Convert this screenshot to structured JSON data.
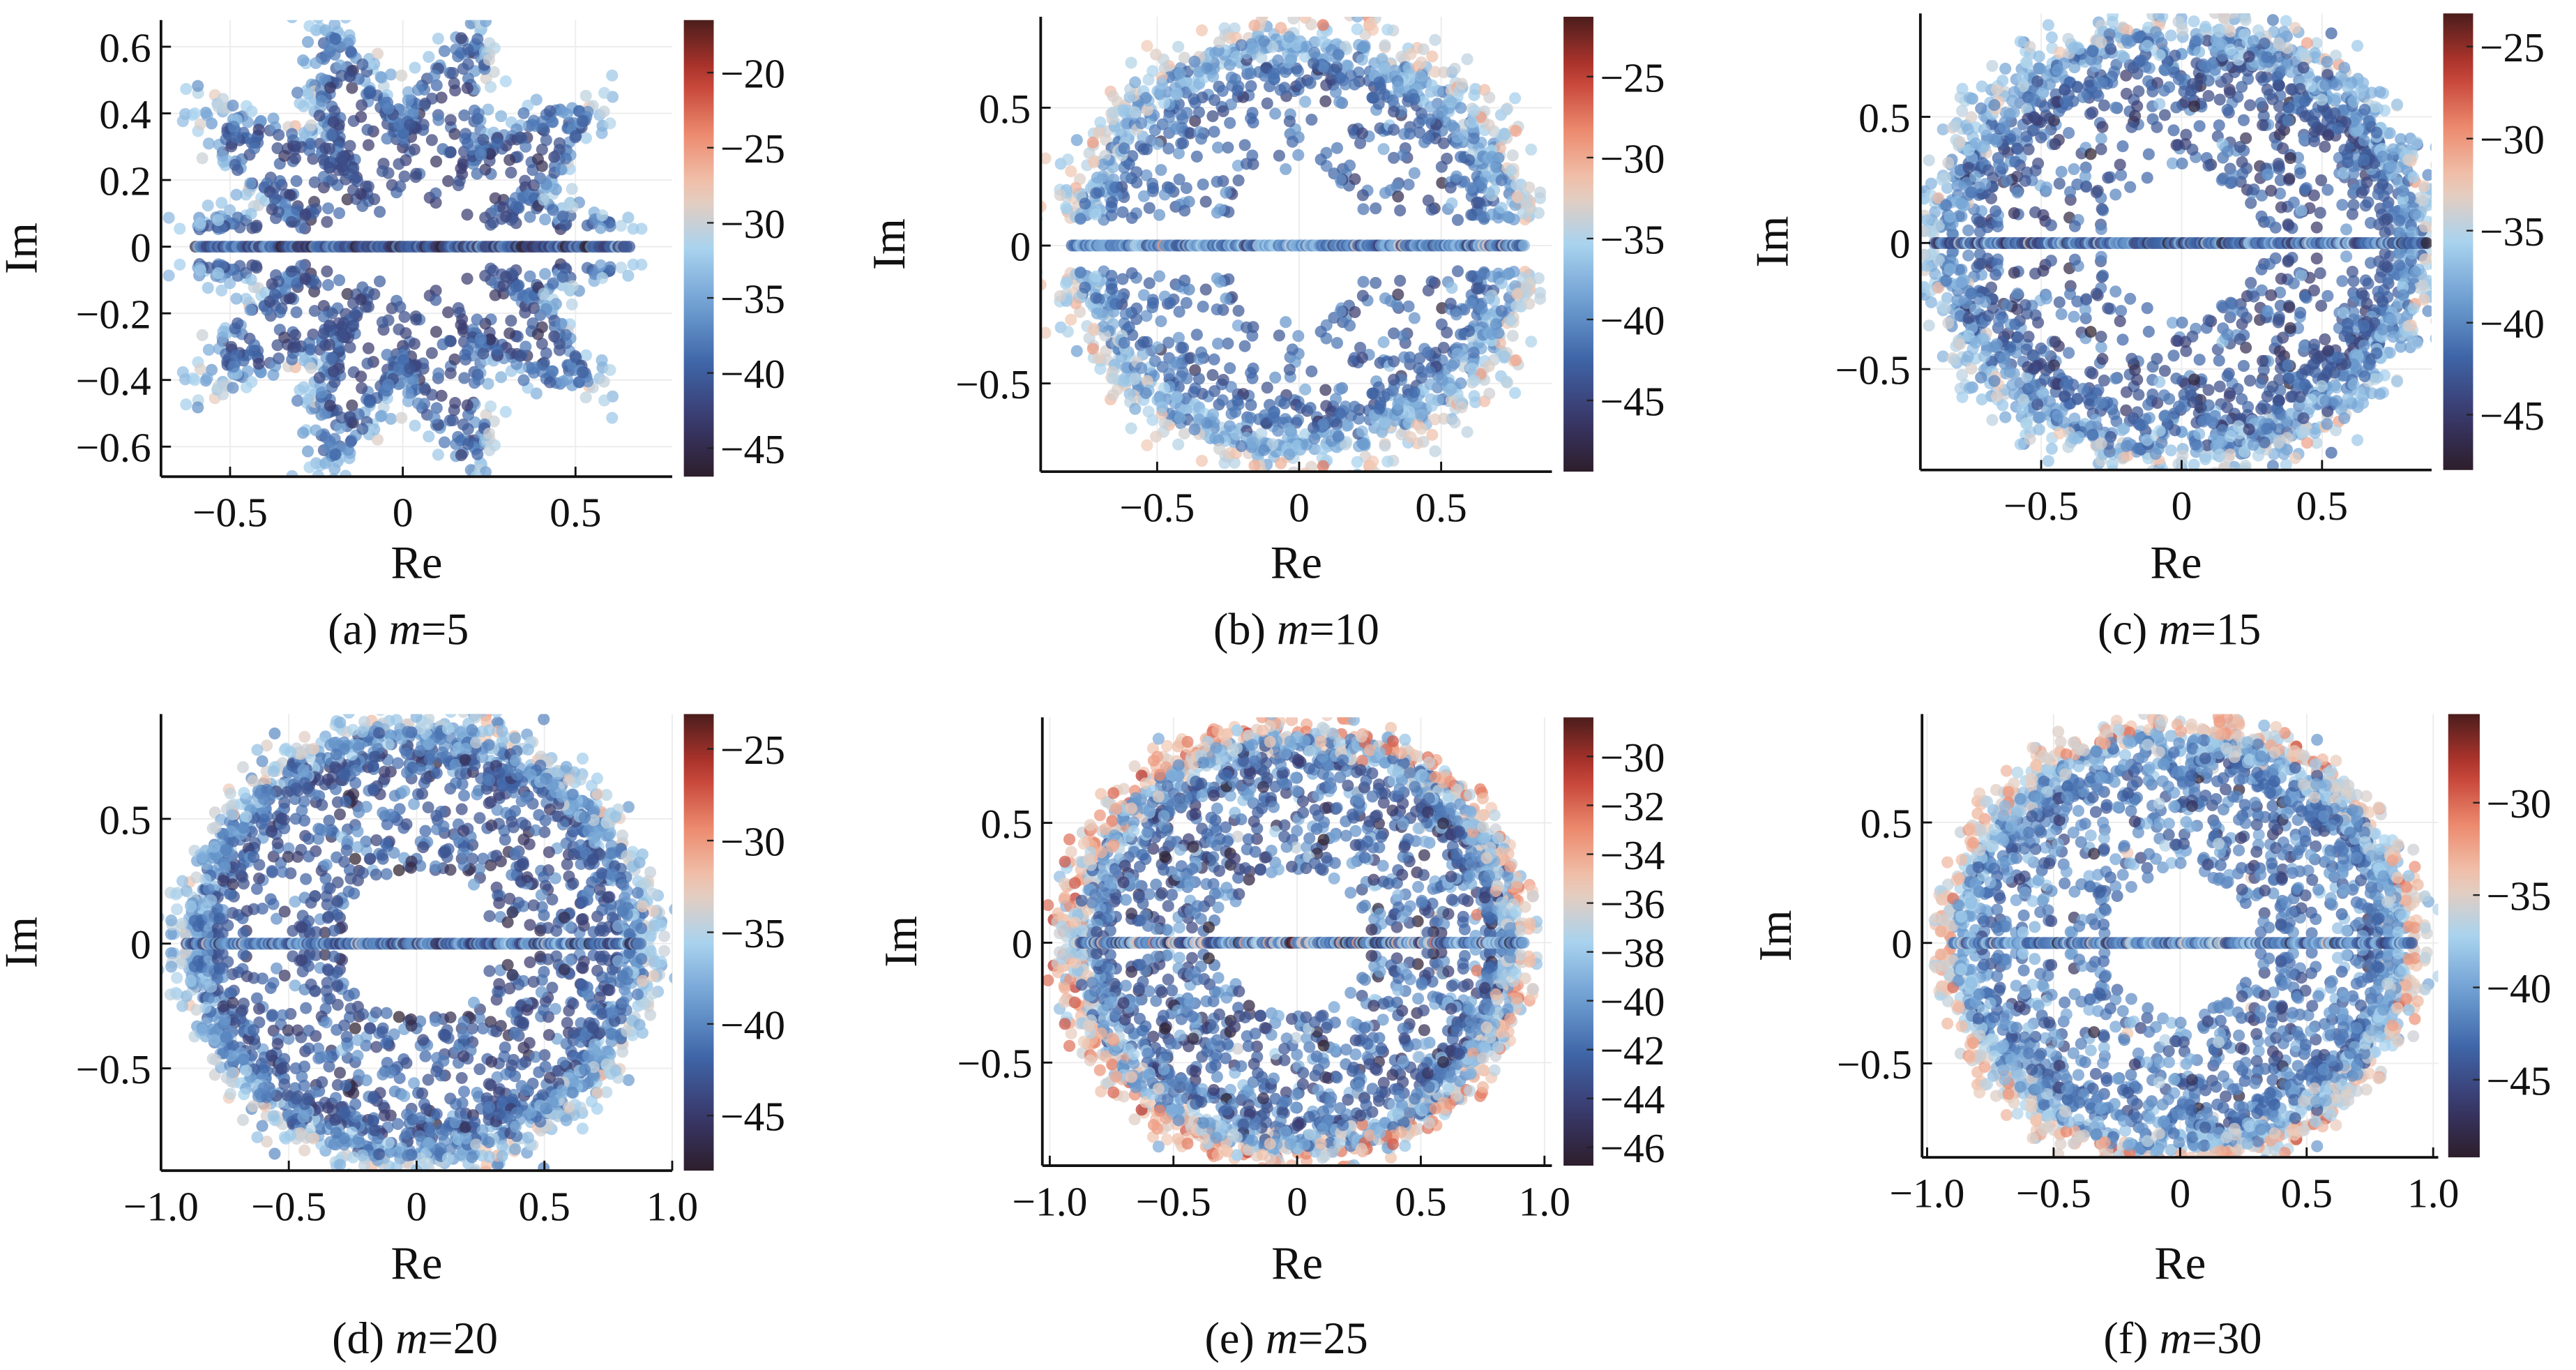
{
  "chart_data": [
    {
      "type": "scatter",
      "caption_prefix": "(a) ",
      "caption_var": "m",
      "caption_eq": "=5",
      "xlabel": "Re",
      "ylabel": "Im",
      "xlim": [
        -0.7,
        0.78
      ],
      "ylim": [
        -0.69,
        0.68
      ],
      "xticks": [
        -0.5,
        0,
        0.5
      ],
      "xticklabels": [
        "−0.5",
        "0",
        "0.5"
      ],
      "yticks": [
        0.6,
        0.4,
        0.2,
        0,
        -0.2,
        -0.4,
        -0.6
      ],
      "yticklabels": [
        "0.6",
        "0.4",
        "0.2",
        "0",
        "−0.2",
        "−0.4",
        "−0.6"
      ],
      "colorbar": {
        "range": [
          -46.9,
          -16.5
        ],
        "ticks": [
          -20,
          -25,
          -30,
          -35,
          -40,
          -45
        ],
        "ticklabels": [
          "−20",
          "−25",
          "−30",
          "−35",
          "−40",
          "−45"
        ]
      },
      "cloud": {
        "shape": "lobed",
        "radius": 0.5,
        "lobe_amp": 0.13,
        "lobes": 10,
        "width": 0.07,
        "n_ring": 1300,
        "n_inner": 160,
        "real_axis": [
          -0.6,
          0.66
        ],
        "axis_gap": 0.05,
        "values": {
          "inner": -41,
          "ring": -38.5,
          "edge": -33
        }
      }
    },
    {
      "type": "scatter",
      "caption_prefix": "(b) ",
      "caption_var": "m",
      "caption_eq": "=10",
      "xlabel": "Re",
      "ylabel": "Im",
      "xlim": [
        -0.91,
        0.89
      ],
      "ylim": [
        -0.82,
        0.83
      ],
      "xticks": [
        -0.5,
        0,
        0.5
      ],
      "xticklabels": [
        "−0.5",
        "0",
        "0.5"
      ],
      "yticks": [
        0.5,
        0,
        -0.5
      ],
      "yticklabels": [
        "0.5",
        "0",
        "−0.5"
      ],
      "colorbar": {
        "range": [
          -49.4,
          -21.3
        ],
        "ticks": [
          -25,
          -30,
          -35,
          -40,
          -45
        ],
        "ticklabels": [
          "−25",
          "−30",
          "−35",
          "−40",
          "−45"
        ]
      },
      "cloud": {
        "shape": "ring",
        "radius": 0.72,
        "lobe_amp": 0,
        "lobes": 0,
        "width": 0.07,
        "n_ring": 1500,
        "n_inner": 220,
        "real_axis": [
          -0.8,
          0.8
        ],
        "axis_gap": 0.09,
        "values": {
          "inner": -42,
          "ring": -38,
          "edge": -34
        }
      }
    },
    {
      "type": "scatter",
      "caption_prefix": "(c) ",
      "caption_var": "m",
      "caption_eq": "=15",
      "xlabel": "Re",
      "ylabel": "Im",
      "xlim": [
        -0.93,
        0.89
      ],
      "ylim": [
        -0.9,
        0.91
      ],
      "xticks": [
        -0.5,
        0,
        0.5
      ],
      "xticklabels": [
        "−0.5",
        "0",
        "0.5"
      ],
      "yticks": [
        0.5,
        0,
        -0.5
      ],
      "yticklabels": [
        "0.5",
        "0",
        "−0.5"
      ],
      "colorbar": {
        "range": [
          -48,
          -23.2
        ],
        "ticks": [
          -25,
          -30,
          -35,
          -40,
          -45
        ],
        "ticklabels": [
          "−25",
          "−30",
          "−35",
          "−40",
          "−45"
        ]
      },
      "cloud": {
        "shape": "ring",
        "radius": 0.8,
        "lobe_amp": 0,
        "lobes": 0,
        "width": 0.07,
        "n_ring": 1700,
        "n_inner": 330,
        "real_axis": [
          -0.88,
          0.88
        ],
        "axis_gap": 0.03,
        "values": {
          "inner": -42,
          "ring": -39,
          "edge": -36
        }
      }
    },
    {
      "type": "scatter",
      "caption_prefix": "(d) ",
      "caption_var": "m",
      "caption_eq": "=20",
      "xlabel": "Re",
      "ylabel": "Im",
      "xlim": [
        -1.0,
        1.0
      ],
      "ylim": [
        -0.91,
        0.92
      ],
      "xticks": [
        -1.0,
        -0.5,
        0,
        0.5,
        1.0
      ],
      "xticklabels": [
        "−1.0",
        "−0.5",
        "0",
        "0.5",
        "1.0"
      ],
      "yticks": [
        0.5,
        0,
        -0.5
      ],
      "yticklabels": [
        "0.5",
        "0",
        "−0.5"
      ],
      "colorbar": {
        "range": [
          -48,
          -23.1
        ],
        "ticks": [
          -25,
          -30,
          -35,
          -40,
          -45
        ],
        "ticklabels": [
          "−25",
          "−30",
          "−35",
          "−40",
          "−45"
        ]
      },
      "cloud": {
        "shape": "ring",
        "radius": 0.83,
        "lobe_amp": 0,
        "lobes": 0,
        "width": 0.06,
        "n_ring": 1700,
        "n_inner": 420,
        "real_axis": [
          -0.9,
          0.88
        ],
        "axis_gap": 0.02,
        "values": {
          "inner": -42.5,
          "ring": -39,
          "edge": -35.5
        }
      }
    },
    {
      "type": "scatter",
      "caption_prefix": "(e) ",
      "caption_var": "m",
      "caption_eq": "=25",
      "xlabel": "Re",
      "ylabel": "Im",
      "xlim": [
        -1.03,
        1.03
      ],
      "ylim": [
        -0.93,
        0.94
      ],
      "xticks": [
        -1.0,
        -0.5,
        0,
        0.5,
        1.0
      ],
      "xticklabels": [
        "−1.0",
        "−0.5",
        "0",
        "0.5",
        "1.0"
      ],
      "yticks": [
        0.5,
        0,
        -0.5
      ],
      "yticklabels": [
        "0.5",
        "0",
        "−0.5"
      ],
      "colorbar": {
        "range": [
          -46.75,
          -28.4
        ],
        "ticks": [
          -30,
          -32,
          -34,
          -36,
          -38,
          -40,
          -42,
          -44,
          -46
        ],
        "ticklabels": [
          "−30",
          "−32",
          "−34",
          "−36",
          "−38",
          "−40",
          "−42",
          "−44",
          "−46"
        ]
      },
      "cloud": {
        "shape": "ring",
        "radius": 0.84,
        "lobe_amp": 0,
        "lobes": 0,
        "width": 0.06,
        "n_ring": 1800,
        "n_inner": 480,
        "real_axis": [
          -0.9,
          0.92
        ],
        "axis_gap": 0.02,
        "values": {
          "inner": -42,
          "ring": -38.5,
          "edge": -35
        }
      }
    },
    {
      "type": "scatter",
      "caption_prefix": "(f) ",
      "caption_var": "m",
      "caption_eq": "=30",
      "xlabel": "Re",
      "ylabel": "Im",
      "xlim": [
        -1.02,
        1.02
      ],
      "ylim": [
        -0.89,
        0.95
      ],
      "xticks": [
        -1.0,
        -0.5,
        0,
        0.5,
        1.0
      ],
      "xticklabels": [
        "−1.0",
        "−0.5",
        "0",
        "0.5",
        "1.0"
      ],
      "yticks": [
        0.5,
        0,
        -0.5
      ],
      "yticklabels": [
        "0.5",
        "0",
        "−0.5"
      ],
      "colorbar": {
        "range": [
          -49.2,
          -25.2
        ],
        "ticks": [
          -30,
          -35,
          -40,
          -45
        ],
        "ticklabels": [
          "−30",
          "−35",
          "−40",
          "−45"
        ]
      },
      "cloud": {
        "shape": "ring",
        "radius": 0.84,
        "lobe_amp": 0,
        "lobes": 0,
        "width": 0.06,
        "n_ring": 1800,
        "n_inner": 480,
        "real_axis": [
          -0.9,
          0.92
        ],
        "axis_gap": 0.02,
        "values": {
          "inner": -42,
          "ring": -39,
          "edge": -34.5
        }
      }
    }
  ],
  "colormap": [
    "#2d1e2b",
    "#3a3a6e",
    "#3f66a8",
    "#6f9fd2",
    "#a9d3ee",
    "#f1cbb6",
    "#ec8a6e",
    "#c0392f",
    "#4b1d1c"
  ]
}
